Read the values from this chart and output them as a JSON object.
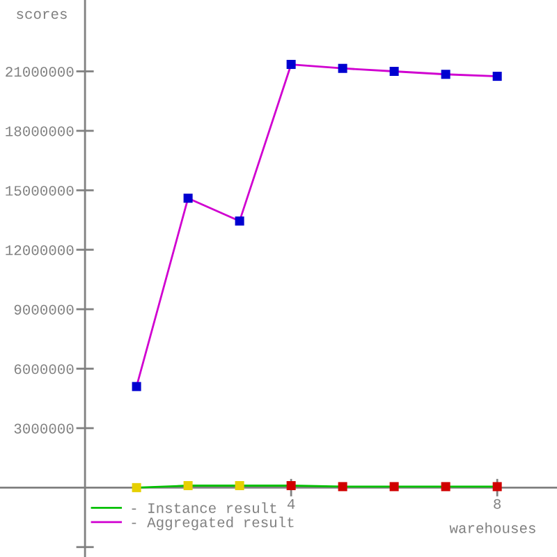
{
  "chart_data": {
    "type": "line",
    "xlabel": "warehouses",
    "ylabel": "scores",
    "x": [
      1,
      2,
      3,
      4,
      5,
      6,
      7,
      8
    ],
    "series": [
      {
        "name": "- Instance result",
        "color": "#00c000",
        "colors": [
          "#e6d000",
          "#e6d000",
          "#e6d000",
          "#d00000",
          "#d00000",
          "#d00000",
          "#d00000",
          "#d00000"
        ],
        "values": [
          0,
          100000,
          100000,
          100000,
          50000,
          50000,
          50000,
          50000
        ]
      },
      {
        "name": "- Aggregated result",
        "color": "#d000d0",
        "colors": [
          "#0000d0",
          "#0000d0",
          "#0000d0",
          "#0000d0",
          "#0000d0",
          "#0000d0",
          "#0000d0",
          "#0000d0"
        ],
        "values": [
          5100000,
          14600000,
          13450000,
          21350000,
          21150000,
          21000000,
          20850000,
          20750000
        ]
      }
    ],
    "xlim": [
      -1.65,
      9.16
    ],
    "ylim": [
      -3500000,
      24600000
    ],
    "xticks": [
      4,
      8
    ],
    "yticks": [
      {
        "value": -3000000,
        "label": null
      },
      3000000,
      6000000,
      9000000,
      12000000,
      15000000,
      18000000,
      21000000
    ],
    "grid": false,
    "legend": "bottom left",
    "marker": "square",
    "line_style": "solid"
  }
}
